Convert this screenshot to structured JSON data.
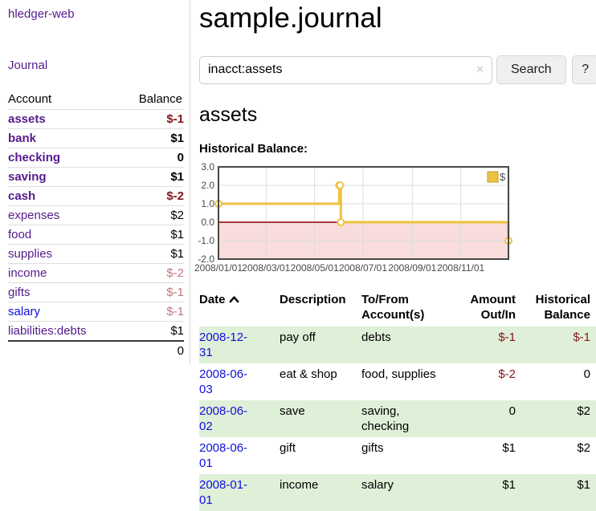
{
  "sidebar": {
    "app_title": "hledger-web",
    "nav_journal": "Journal",
    "accounts": {
      "col_account": "Account",
      "col_balance": "Balance",
      "rows": [
        {
          "name": "assets",
          "balance": "$-1"
        },
        {
          "name": "bank",
          "balance": "$1"
        },
        {
          "name": "checking",
          "balance": "0"
        },
        {
          "name": "saving",
          "balance": "$1"
        },
        {
          "name": "cash",
          "balance": "$-2"
        },
        {
          "name": "expenses",
          "balance": "$2"
        },
        {
          "name": "food",
          "balance": "$1"
        },
        {
          "name": "supplies",
          "balance": "$1"
        },
        {
          "name": "income",
          "balance": "$-2"
        },
        {
          "name": "gifts",
          "balance": "$-1"
        },
        {
          "name": "salary",
          "balance": "$-1"
        },
        {
          "name": "liabilities:debts",
          "balance": "$1"
        }
      ],
      "total": "0"
    }
  },
  "main": {
    "title": "sample.journal",
    "search": {
      "query": "inacct:assets",
      "clear_icon": "×",
      "search_button": "Search",
      "help_button": "?"
    },
    "account_heading": "assets",
    "chart_heading": "Historical Balance:"
  },
  "chart_data": {
    "type": "line",
    "title": "Historical Balance:",
    "step": true,
    "series": [
      {
        "name": "$",
        "color": "#edc240",
        "points": [
          [
            "2008-01-01",
            1
          ],
          [
            "2008-06-01",
            2
          ],
          [
            "2008-06-02",
            2
          ],
          [
            "2008-06-03",
            0
          ],
          [
            "2008-12-31",
            -1
          ]
        ]
      }
    ],
    "x_range": [
      "2008-01-01",
      "2008-12-31"
    ],
    "x_ticks": [
      {
        "date": "2008-01-01",
        "label": "2008/01/01"
      },
      {
        "date": "2008-03-01",
        "label": "2008/03/01"
      },
      {
        "date": "2008-05-01",
        "label": "2008/05/01"
      },
      {
        "date": "2008-07-01",
        "label": "2008/07/01"
      },
      {
        "date": "2008-09-01",
        "label": "2008/09/01"
      },
      {
        "date": "2008-11-01",
        "label": "2008/11/01"
      }
    ],
    "y_ticks": [
      {
        "v": 3,
        "label": "3.0"
      },
      {
        "v": 2,
        "label": "2.0"
      },
      {
        "v": 1,
        "label": "1.0"
      },
      {
        "v": 0,
        "label": "0.0"
      },
      {
        "v": -1,
        "label": "-1.0"
      },
      {
        "v": -2,
        "label": "-2.0"
      }
    ],
    "ylim": [
      -2,
      3
    ],
    "legend_position": "top-right",
    "grid": true,
    "colors": {
      "grid": "#dcdcdc",
      "border": "#474747",
      "zero_line": "#8b0000",
      "negative_region": "#f9dcdc",
      "tick_text": "#4a4a4a",
      "legend_text": "#545454",
      "legend_box_border": "#c19e2e",
      "marker_fill": "#ffffff"
    }
  },
  "register": {
    "headers": {
      "date": "Date",
      "description": "Description",
      "to_from": "To/From Account(s)",
      "amount": "Amount Out/In",
      "historical": "Historical Balance"
    },
    "rows": [
      {
        "date": "2008-12-31",
        "description": "pay off",
        "to_from": "debts",
        "amount": "$-1",
        "historical": "$-1"
      },
      {
        "date": "2008-06-03",
        "description": "eat & shop",
        "to_from": "food, supplies",
        "amount": "$-2",
        "historical": "0"
      },
      {
        "date": "2008-06-02",
        "description": "save",
        "to_from": "saving, checking",
        "amount": "0",
        "historical": "$2"
      },
      {
        "date": "2008-06-01",
        "description": "gift",
        "to_from": "gifts",
        "amount": "$1",
        "historical": "$2"
      },
      {
        "date": "2008-01-01",
        "description": "income",
        "to_from": "salary",
        "amount": "$1",
        "historical": "$1"
      }
    ]
  }
}
